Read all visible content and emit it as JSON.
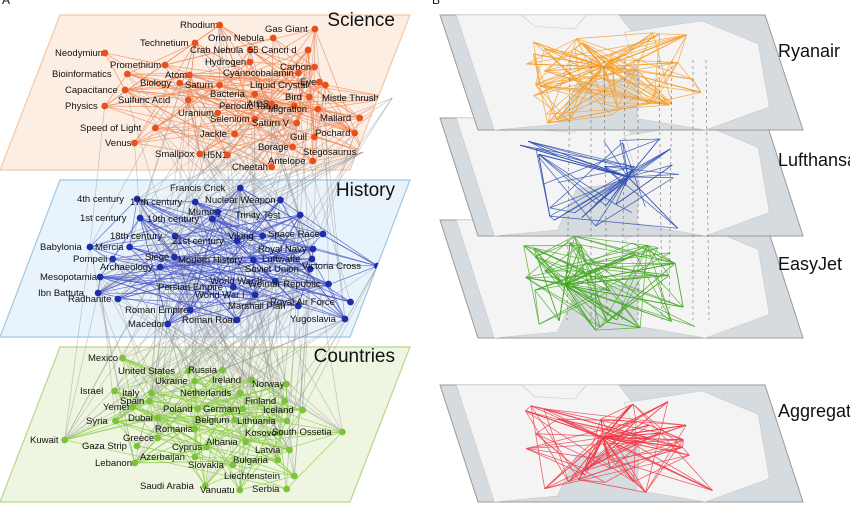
{
  "panel_labels": [
    "A",
    "B"
  ],
  "multilayer": {
    "layers": [
      {
        "name": "Science",
        "fill": "#fdeee4",
        "stroke": "#f2c9a8",
        "node_color": "#e8501c",
        "edge_color": "#f08a5a",
        "nodes": [
          "Rhodium",
          "Gas Giant",
          "Orion Nebula",
          "Technetium",
          "Crab Nebula",
          "55 Cancri d",
          "Neodymium",
          "Promethium",
          "Hydrogen",
          "Carbon",
          "Bioinformatics",
          "Atom",
          "Cyanocobalamin",
          "Eye",
          "Biology",
          "Saturn",
          "Liquid Crystal",
          "Capacitance",
          "Bacteria",
          "Bird",
          "Mistle Thrush",
          "Sulfuric Acid",
          "Periodic Table",
          "AIDS",
          "Migration",
          "Physics",
          "Uranium",
          "Selenium",
          "Saturn V",
          "Mallard",
          "Speed of Light",
          "Gull",
          "Pochard",
          "Jackle",
          "Venus",
          "Borage",
          "Stegosaurus",
          "Smallpox",
          "H5N1",
          "Antelope",
          "Cheetah"
        ]
      },
      {
        "name": "History",
        "fill": "#e8f3fb",
        "stroke": "#9ec8e6",
        "node_color": "#1c2fa8",
        "edge_color": "#4a55c8",
        "nodes": [
          "Francis Crick",
          "4th century",
          "17th century",
          "Nuclear Weapon",
          "1st century",
          "19th century",
          "Mummy",
          "Trinity Test",
          "18th century",
          "Mercia",
          "21st century",
          "Viking",
          "Space Race",
          "Babylonia",
          "Royal Navy",
          "Pompeii",
          "Siege",
          "Modern History",
          "Luftwaffe",
          "Archaeology",
          "Soviet Union",
          "Victoria Cross",
          "Mesopotamia",
          "World War II",
          "Weimar Republic",
          "Ibn Battuta",
          "Persian Empire",
          "World War I",
          "Radhanite",
          "Marshall Plan",
          "Royal Air Force",
          "Roman Empire",
          "Yugoslavia",
          "Macedon",
          "Roman Road"
        ]
      },
      {
        "name": "Countries",
        "fill": "#eef5e0",
        "stroke": "#b9d68c",
        "node_color": "#7cc23a",
        "edge_color": "#8ccc44",
        "nodes": [
          "Mexico",
          "United States",
          "Russia",
          "Ukraine",
          "Ireland",
          "Norway",
          "Israel",
          "Italy",
          "Netherlands",
          "Spain",
          "Finland",
          "Yemen",
          "Poland",
          "Germany",
          "Iceland",
          "Syria",
          "Dubai",
          "Lithuania",
          "Belgium",
          "Romania",
          "Greece",
          "Kosovo",
          "South Ossetia",
          "Kuwait",
          "Gaza Strip",
          "Cyprus",
          "Albania",
          "Latvia",
          "Lebanon",
          "Azerbaijan",
          "Bulgaria",
          "Slovakia",
          "Liechtenstein",
          "Saudi Arabia",
          "Vanuatu",
          "Serbia"
        ]
      }
    ],
    "interlayer_edge_color": "#9a9a9a"
  },
  "airlines": {
    "layers": [
      {
        "name": "Ryanair",
        "color": "#f5a030"
      },
      {
        "name": "Lufthansa",
        "color": "#2e4fb0"
      },
      {
        "name": "EasyJet",
        "color": "#4aaa28"
      },
      {
        "name": "Aggregate",
        "color": "#ee3c48"
      }
    ],
    "map_land": "#f4f4f4",
    "map_sea": "#d6dbe0"
  }
}
